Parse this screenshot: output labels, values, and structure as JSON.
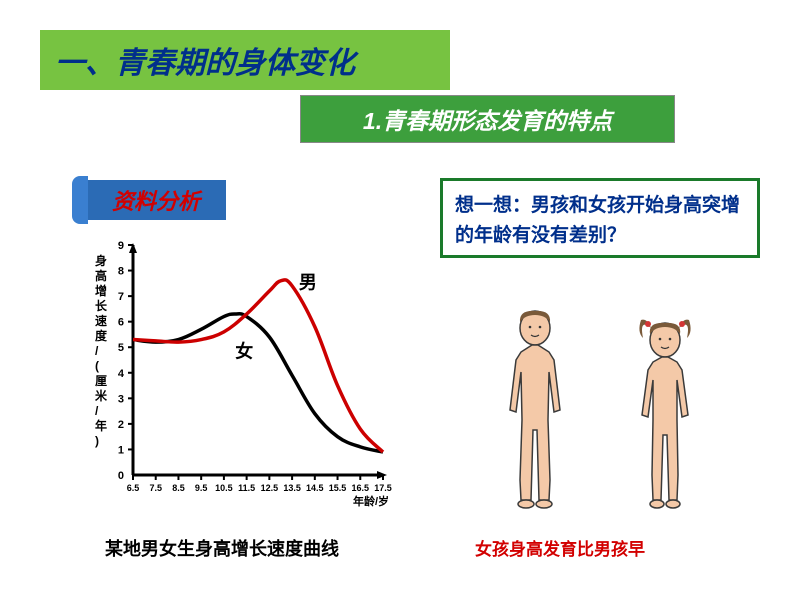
{
  "title": "一、青春期的身体变化",
  "subtitle": "1.青春期形态发育的特点",
  "data_label": "资料分析",
  "question": "想一想：男孩和女孩开始身高突增的年龄有没有差别？",
  "caption_left": "某地男女生身高增长速度曲线",
  "caption_right": "女孩身高发育比男孩早",
  "chart": {
    "type": "line",
    "y_label": "身高增长速度/(厘米/年)",
    "x_label": "年龄/岁",
    "y_ticks": [
      0,
      1,
      2,
      3,
      4,
      5,
      6,
      7,
      8,
      9
    ],
    "x_ticks": [
      "6.5",
      "7.5",
      "8.5",
      "9.5",
      "10.5",
      "11.5",
      "12.5",
      "13.5",
      "14.5",
      "15.5",
      "16.5",
      "17.5"
    ],
    "ylim": [
      0,
      9
    ],
    "xlim": [
      6.5,
      17.5
    ],
    "axis_color": "#000000",
    "axis_width": 3,
    "label_fontsize": 11,
    "series": {
      "male": {
        "label": "男",
        "color": "#cc0000",
        "width": 3.5,
        "points": [
          [
            6.5,
            5.3
          ],
          [
            7.5,
            5.25
          ],
          [
            8.5,
            5.2
          ],
          [
            9.5,
            5.3
          ],
          [
            10.5,
            5.6
          ],
          [
            11.5,
            6.3
          ],
          [
            12.5,
            7.2
          ],
          [
            13.0,
            7.6
          ],
          [
            13.5,
            7.4
          ],
          [
            14.5,
            5.8
          ],
          [
            15.5,
            3.5
          ],
          [
            16.5,
            1.8
          ],
          [
            17.5,
            0.9
          ]
        ]
      },
      "female": {
        "label": "女",
        "color": "#000000",
        "width": 3.5,
        "points": [
          [
            6.5,
            5.3
          ],
          [
            7.5,
            5.2
          ],
          [
            8.5,
            5.3
          ],
          [
            9.5,
            5.7
          ],
          [
            10.5,
            6.2
          ],
          [
            11.0,
            6.3
          ],
          [
            11.5,
            6.2
          ],
          [
            12.5,
            5.4
          ],
          [
            13.5,
            3.9
          ],
          [
            14.5,
            2.4
          ],
          [
            15.5,
            1.5
          ],
          [
            16.5,
            1.1
          ],
          [
            17.5,
            0.9
          ]
        ]
      }
    }
  },
  "figures": {
    "boy": {
      "skin": "#f4c9a8",
      "outline": "#3a3a3a",
      "hair": "#7a5a3a"
    },
    "girl": {
      "skin": "#f4c9a8",
      "outline": "#3a3a3a",
      "hair": "#7a5a3a",
      "bow": "#d43535"
    }
  }
}
